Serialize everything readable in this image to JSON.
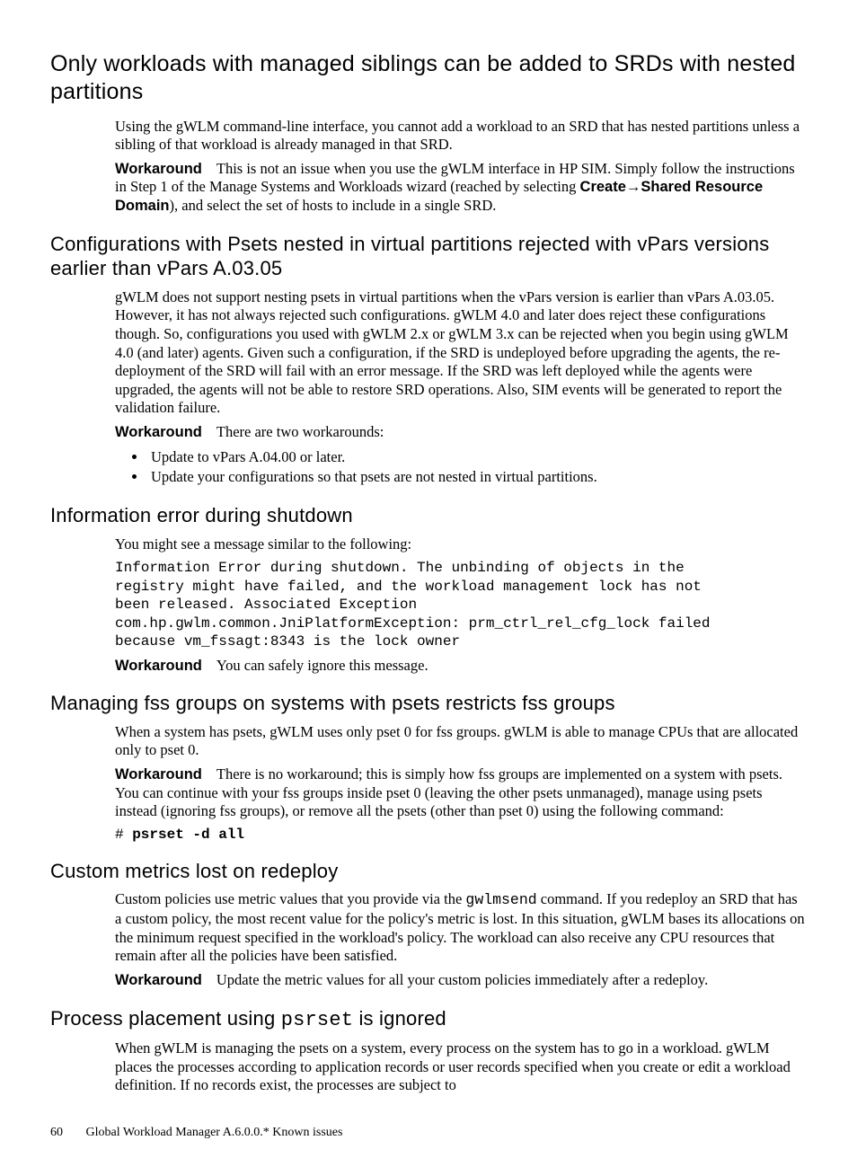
{
  "sections": [
    {
      "heading": "Only workloads with managed siblings can be added to SRDs with nested partitions",
      "heading_level": 1,
      "blocks": [
        {
          "kind": "para",
          "text": "Using the gWLM command-line interface, you cannot add a workload to an SRD that has nested partitions unless a sibling of that workload is already managed in that SRD."
        },
        {
          "kind": "workaround",
          "label": "Workaround",
          "runs": [
            {
              "t": "This is not an issue when you use the gWLM interface in HP SIM. Simply follow the instructions in Step 1 of the Manage Systems and Workloads wizard (reached by selecting "
            },
            {
              "t": "Create",
              "bold": true
            },
            {
              "t": "→",
              "arrow": true
            },
            {
              "t": "Shared Resource Domain",
              "bold": true
            },
            {
              "t": "), and select the set of hosts to include in a single SRD."
            }
          ]
        }
      ]
    },
    {
      "heading": "Configurations with Psets nested in virtual partitions rejected with vPars versions earlier than vPars A.03.05",
      "heading_level": 2,
      "blocks": [
        {
          "kind": "para",
          "text": "gWLM does not support nesting psets in virtual partitions when the vPars version is earlier than vPars A.03.05. However, it has not always rejected such configurations. gWLM 4.0 and later does reject these configurations though. So, configurations you used with gWLM 2.x or gWLM 3.x can be rejected when you begin using gWLM 4.0 (and later) agents. Given such a configuration, if the SRD is undeployed before upgrading the agents, the re-deployment of the SRD will fail with an error message. If the SRD was left deployed while the agents were upgraded, the agents will not be able to restore SRD operations. Also, SIM events will be generated to report the validation failure."
        },
        {
          "kind": "workaround",
          "label": "Workaround",
          "runs": [
            {
              "t": "There are two workarounds:"
            }
          ]
        },
        {
          "kind": "bullets",
          "items": [
            "Update to vPars A.04.00 or later.",
            "Update your configurations so that psets are not nested in virtual partitions."
          ]
        }
      ]
    },
    {
      "heading": "Information error during shutdown",
      "heading_level": 2,
      "blocks": [
        {
          "kind": "para",
          "text": "You might see a message similar to the following:"
        },
        {
          "kind": "mono",
          "text": "Information Error during shutdown. The unbinding of objects in the\nregistry might have failed, and the workload management lock has not\nbeen released. Associated Exception\ncom.hp.gwlm.common.JniPlatformException: prm_ctrl_rel_cfg_lock failed\nbecause vm_fssagt:8343 is the lock owner"
        },
        {
          "kind": "workaround",
          "label": "Workaround",
          "runs": [
            {
              "t": "You can safely ignore this message."
            }
          ]
        }
      ]
    },
    {
      "heading": "Managing fss groups on systems with psets restricts fss groups",
      "heading_level": 2,
      "blocks": [
        {
          "kind": "para",
          "text": "When a system has psets, gWLM uses only pset 0 for fss groups. gWLM is able to manage CPUs that are allocated only to pset 0."
        },
        {
          "kind": "workaround",
          "label": "Workaround",
          "runs": [
            {
              "t": "There is no workaround; this is simply how fss groups are implemented on a system with psets. You can continue with your fss groups inside pset 0 (leaving the other psets unmanaged), manage using psets instead (ignoring fss groups), or remove all the psets (other than pset 0) using the following command:"
            }
          ]
        },
        {
          "kind": "cmd",
          "prompt": "# ",
          "cmd": "psrset -d all"
        }
      ]
    },
    {
      "heading": "Custom metrics lost on redeploy",
      "heading_level": 2,
      "blocks": [
        {
          "kind": "para",
          "runs": [
            {
              "t": "Custom policies use metric values that you provide via the "
            },
            {
              "t": "gwlmsend",
              "mono": true
            },
            {
              "t": " command. If you redeploy an SRD that has a custom policy, the most recent value for the policy's metric is lost. In this situation, gWLM bases its allocations on the minimum request specified in the workload's policy. The workload can also receive any CPU resources that remain after all the policies have been satisfied."
            }
          ]
        },
        {
          "kind": "workaround",
          "label": "Workaround",
          "runs": [
            {
              "t": "Update the metric values for all your custom policies immediately after a redeploy."
            }
          ]
        }
      ]
    },
    {
      "heading_runs": [
        {
          "t": "Process placement using "
        },
        {
          "t": "psrset",
          "mono": true
        },
        {
          "t": " is ignored"
        }
      ],
      "heading_level": 2,
      "blocks": [
        {
          "kind": "para",
          "text": "When gWLM is managing the psets on a system, every process on the system has to go in a workload. gWLM places the processes according to application records or user records specified when you create or edit a workload definition. If no records exist, the processes are subject to"
        }
      ]
    }
  ],
  "footer": {
    "page_number": "60",
    "running_title": "Global Workload Manager A.6.0.0.* Known issues"
  }
}
